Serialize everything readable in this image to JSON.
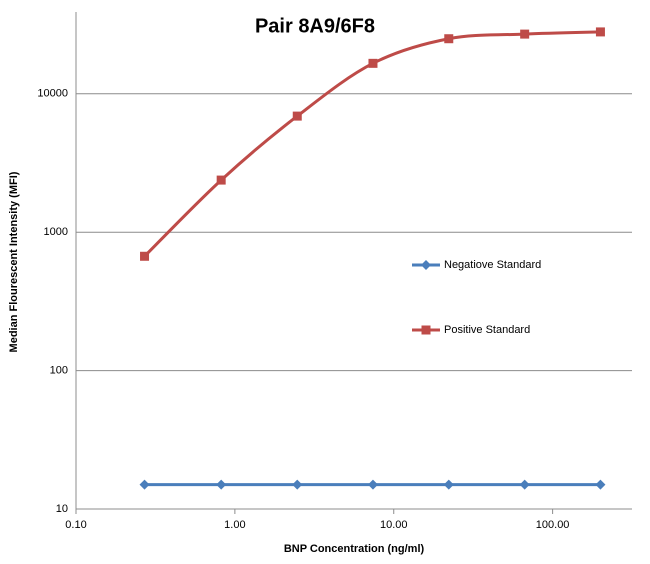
{
  "chart_data": {
    "type": "line",
    "title": "Pair 8A9/6F8",
    "x_label": "BNP Concentration (ng/ml)",
    "y_label": "Median Flourescent Intensity (MFI)",
    "x": [
      0.27,
      0.82,
      2.47,
      7.4,
      22.2,
      66.7,
      200
    ],
    "series": [
      {
        "name": "Negatiove Standard",
        "color": "#4a7ebb",
        "marker": "diamond",
        "smooth": false,
        "values": [
          15,
          15,
          15,
          15,
          15,
          15,
          15
        ]
      },
      {
        "name": "Positive Standard",
        "color": "#be4b48",
        "marker": "square",
        "smooth": true,
        "values": [
          670,
          2380,
          6900,
          16600,
          25000,
          27000,
          28000
        ]
      }
    ],
    "xlim": [
      0.1,
      316
    ],
    "xticks": [
      {
        "value": 0.1,
        "label": "0.10"
      },
      {
        "value": 1,
        "label": "1.00"
      },
      {
        "value": 10,
        "label": "10.00"
      },
      {
        "value": 100,
        "label": "100.00"
      }
    ],
    "ylim": [
      10,
      39000
    ],
    "yticks": [
      10,
      100,
      1000,
      10000
    ],
    "xlog": true,
    "ylog": true,
    "grid": true,
    "legend": "right"
  }
}
